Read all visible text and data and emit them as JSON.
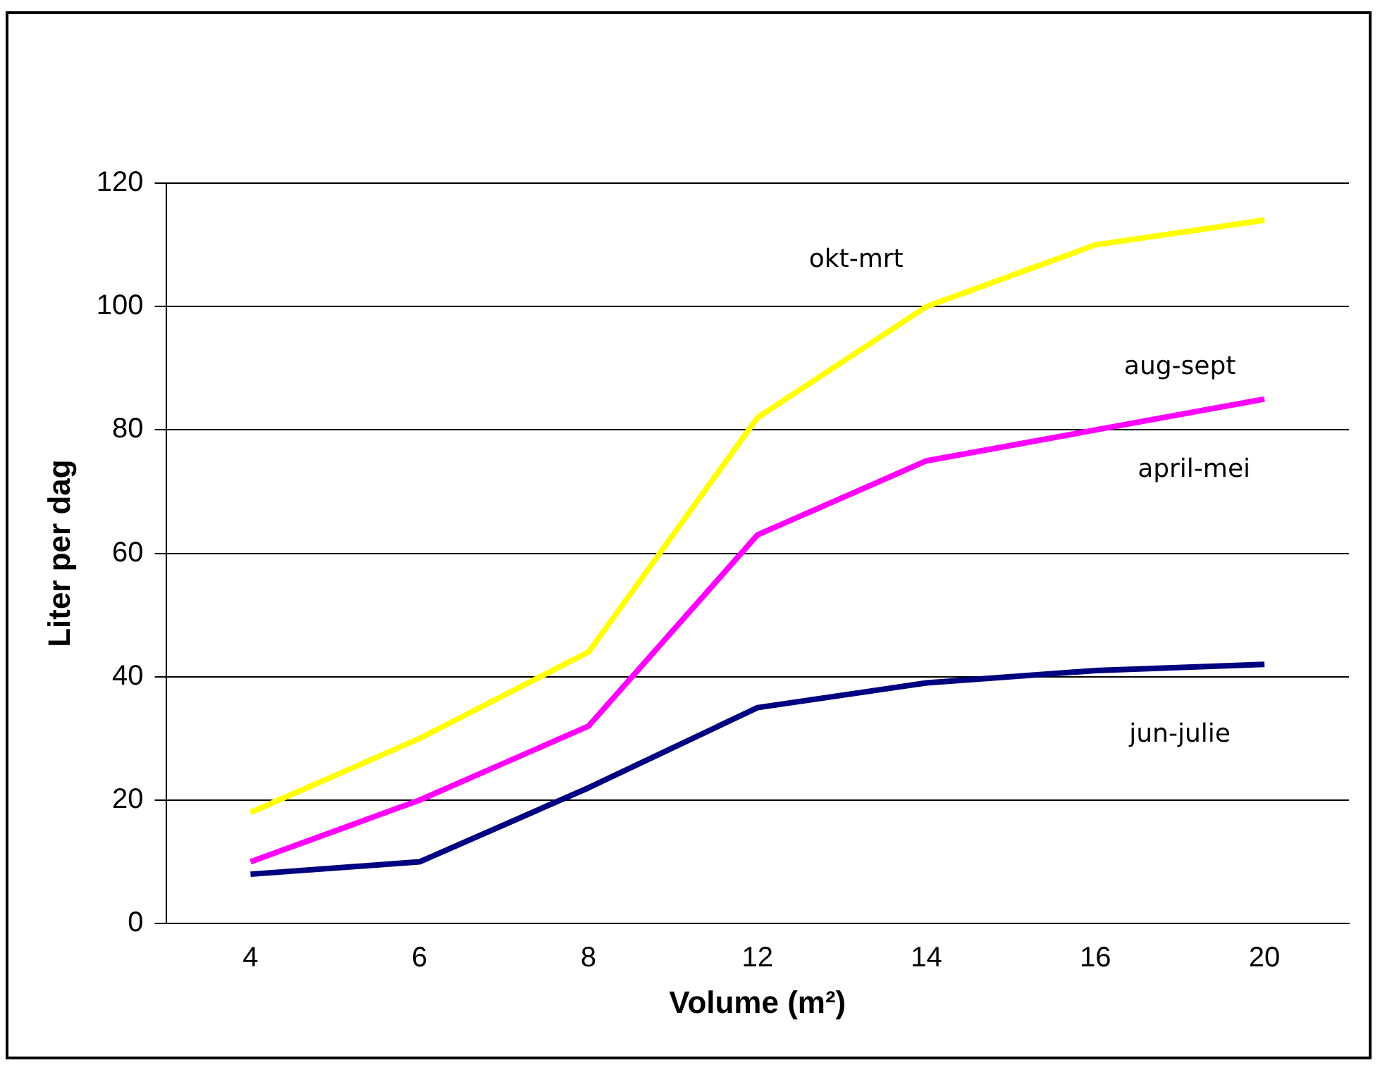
{
  "chart_data": {
    "type": "line",
    "xlabel": "Volume (m²)",
    "ylabel": "Liter per dag",
    "categories": [
      "4",
      "6",
      "8",
      "12",
      "14",
      "16",
      "20"
    ],
    "ylim": [
      0,
      120
    ],
    "yticks": [
      0,
      20,
      40,
      60,
      80,
      100,
      120
    ],
    "grid": "y",
    "legend": false,
    "marker": "none",
    "line_style": "solid",
    "series": [
      {
        "name": "okt-mrt",
        "color": "#ffff00",
        "values": [
          18,
          30,
          44,
          82,
          100,
          110,
          114
        ]
      },
      {
        "name": "aug-sept",
        "color": "#ff00ff",
        "values": [
          10,
          20,
          32,
          63,
          75,
          80,
          85
        ]
      },
      {
        "name": "jun-julie",
        "color": "#000080",
        "values": [
          8,
          10,
          22,
          35,
          39,
          41,
          42
        ]
      }
    ],
    "annotations": [
      "april-mei"
    ]
  }
}
